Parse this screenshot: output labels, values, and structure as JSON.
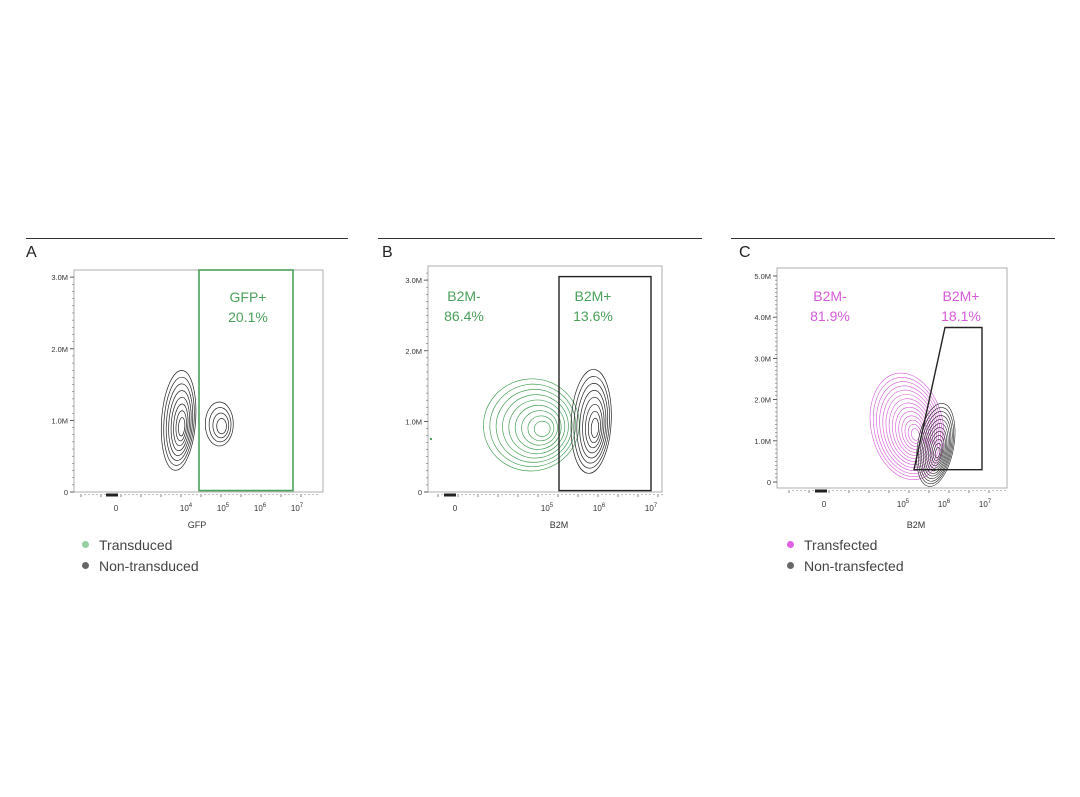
{
  "colors": {
    "green": "#4aa15a",
    "green_light": "#7fbf86",
    "magenta": "#d65ad8",
    "black": "#222222",
    "gray": "#666666"
  },
  "panels": [
    {
      "letter": "A",
      "legend": [
        {
          "label": "Transduced",
          "color": "#94d0a1"
        },
        {
          "label": "Non-transduced",
          "color": "#666666"
        }
      ]
    },
    {
      "letter": "B",
      "legend": []
    },
    {
      "letter": "C",
      "legend": [
        {
          "label": "Transfected",
          "color": "#e260e6"
        },
        {
          "label": "Non-transfected",
          "color": "#666666"
        }
      ]
    }
  ],
  "chart_data": [
    {
      "type": "contour",
      "xlabel": "GFP",
      "ylabel": "",
      "xscale": "biexponential",
      "y_ticks": [
        "0",
        "1.0M",
        "2.0M",
        "3.0M"
      ],
      "ylim": [
        0,
        3.1
      ],
      "x_ticks": [
        "0",
        "10^4",
        "10^5",
        "10^6",
        "10^7"
      ],
      "series": [
        {
          "name": "Transduced",
          "color": "#94d0a1"
        },
        {
          "name": "Non-transduced",
          "color": "#666666"
        }
      ],
      "contour_populations": [
        {
          "color": "#222222",
          "center_x_log": 3.8,
          "center_y": 1.0,
          "n": 8
        },
        {
          "color": "#222222",
          "center_x_log": 4.9,
          "center_y": 0.95,
          "n": 4
        }
      ],
      "gates": [
        {
          "shape": "rect",
          "color": "#4aa15a",
          "x_log": [
            4.3,
            7.0
          ],
          "y": [
            0.02,
            3.1
          ],
          "label": "GFP+",
          "percent": "20.1%"
        }
      ]
    },
    {
      "type": "contour",
      "xlabel": "B2M",
      "ylabel": "",
      "xscale": "biexponential",
      "y_ticks": [
        "0",
        "1.0M",
        "2.0M",
        "3.0M"
      ],
      "ylim": [
        0,
        3.2
      ],
      "x_ticks": [
        "0",
        "10^5",
        "10^6",
        "10^7"
      ],
      "contour_populations": [
        {
          "color": "#4aa15a",
          "center_x_log": 4.7,
          "center_y": 0.95,
          "n": 9
        },
        {
          "color": "#222222",
          "center_x_log": 5.85,
          "center_y": 1.0,
          "n": 8
        }
      ],
      "gates": [
        {
          "shape": "none",
          "color": "#4aa15a",
          "label": "B2M-",
          "percent": "86.4%"
        },
        {
          "shape": "rect",
          "color": "#222222",
          "x_log": [
            5.3,
            7.0
          ],
          "y": [
            0.02,
            3.05
          ],
          "label": "B2M+",
          "percent": "13.6%",
          "label_color": "#4aa15a"
        }
      ]
    },
    {
      "type": "contour",
      "xlabel": "B2M",
      "ylabel": "",
      "xscale": "biexponential",
      "y_ticks": [
        "0",
        "1.0M",
        "2.0M",
        "3.0M",
        "4.0M",
        "5.0M"
      ],
      "ylim": [
        0,
        5.2
      ],
      "x_ticks": [
        "0",
        "10^5",
        "10^6",
        "10^7"
      ],
      "series": [
        {
          "name": "Transfected",
          "color": "#e260e6"
        },
        {
          "name": "Non-transfected",
          "color": "#666666"
        }
      ],
      "contour_populations": [
        {
          "color": "#d65ad8",
          "center_x_log": 5.1,
          "center_y": 1.35,
          "n": 14
        },
        {
          "color": "#222222",
          "center_x_log": 5.8,
          "center_y": 0.9,
          "n": 12
        }
      ],
      "gates": [
        {
          "shape": "none",
          "color": "#d65ad8",
          "label": "B2M-",
          "percent": "81.9%"
        },
        {
          "shape": "polygon",
          "color": "#222222",
          "label": "B2M+",
          "percent": "18.1%",
          "label_color": "#d65ad8"
        }
      ]
    }
  ]
}
